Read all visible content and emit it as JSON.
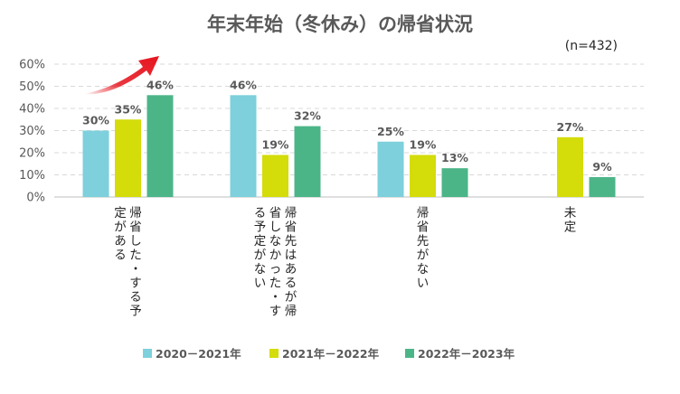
{
  "chart_data": {
    "type": "bar",
    "title": "年末年始（冬休み）の帰省状況",
    "note": "(n=432)",
    "categories": [
      [
        "帰省した・する予",
        "定がある"
      ],
      [
        "帰省先はあるが帰",
        "省しなかった・す",
        "る予定がない"
      ],
      [
        "帰省先がない"
      ],
      [
        "未定"
      ]
    ],
    "series": [
      {
        "name": "2020－2021年",
        "color": "#7dd0dc",
        "values": [
          30,
          46,
          25,
          null
        ]
      },
      {
        "name": "2021年－2022年",
        "color": "#d4dc0a",
        "values": [
          35,
          19,
          19,
          27
        ]
      },
      {
        "name": "2022年－2023年",
        "color": "#4cb588",
        "values": [
          46,
          32,
          13,
          9
        ]
      }
    ],
    "ylim": [
      0,
      60
    ],
    "yticks": [
      "0%",
      "10%",
      "20%",
      "30%",
      "40%",
      "50%",
      "60%"
    ],
    "value_suffix": "%",
    "grid": true,
    "legend_position": "bottom",
    "annotation": "red-trend-arrow"
  }
}
